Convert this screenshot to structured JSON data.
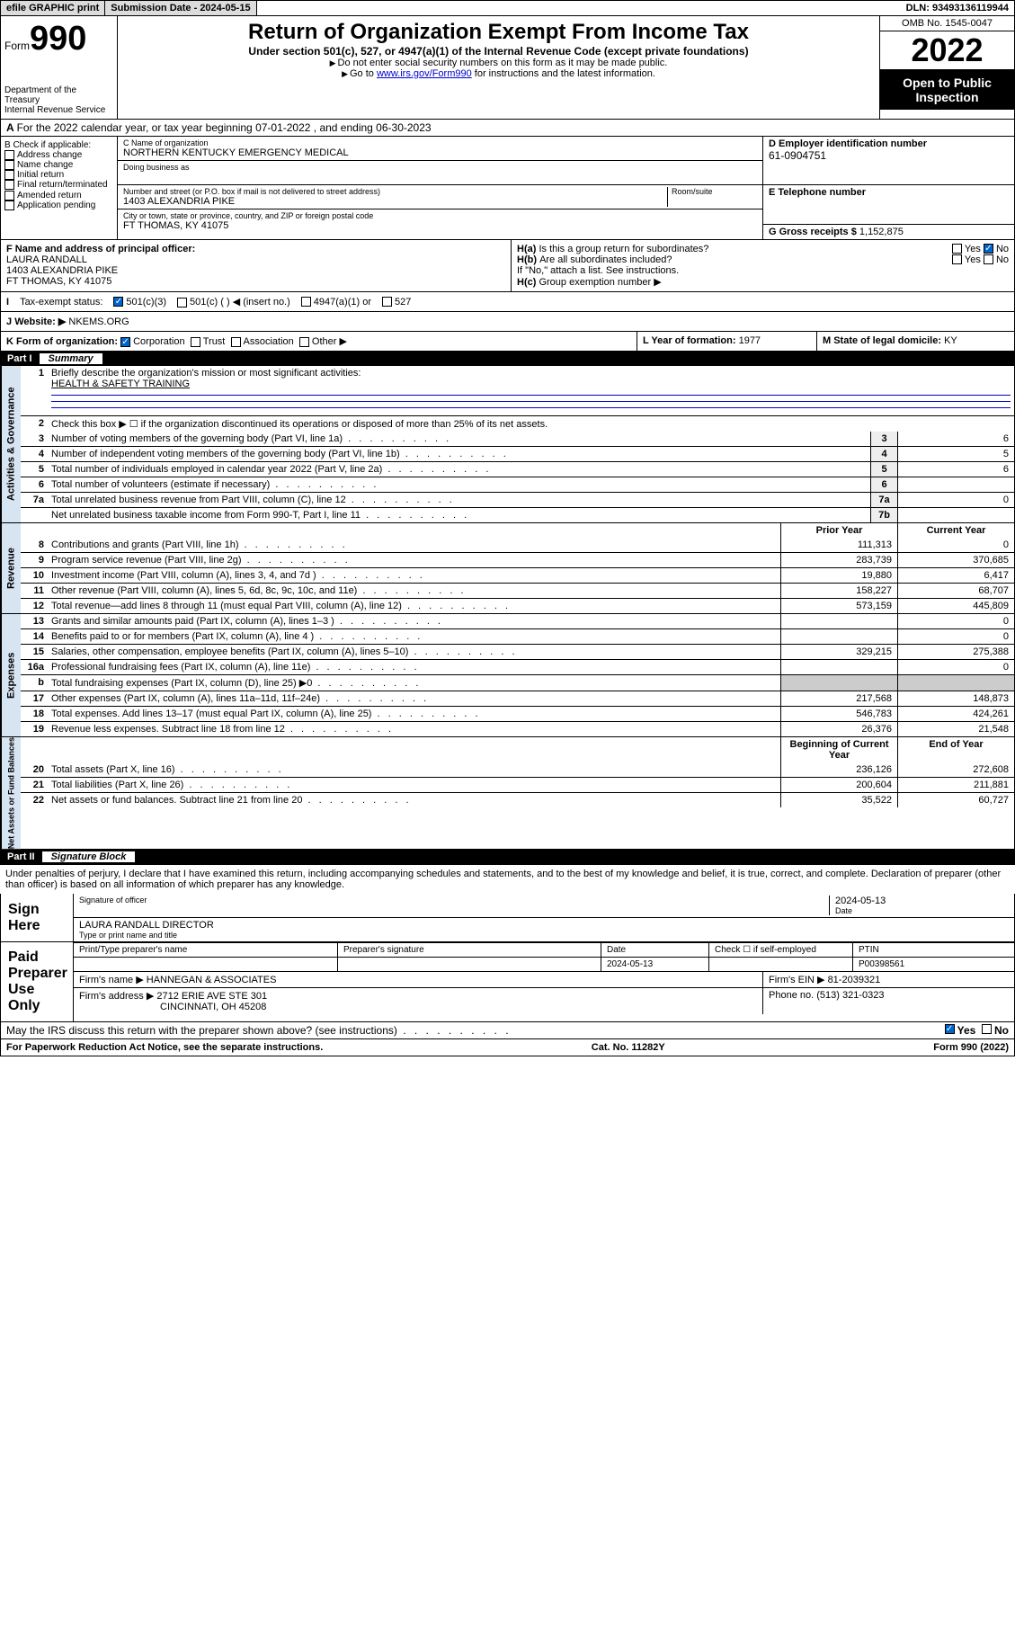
{
  "topbar": {
    "efile": "efile GRAPHIC print",
    "sub_label": "Submission Date - 2024-05-15",
    "dln": "DLN: 93493136119944"
  },
  "header": {
    "form_prefix": "Form",
    "form_num": "990",
    "dept": "Department of the Treasury",
    "irs": "Internal Revenue Service",
    "title": "Return of Organization Exempt From Income Tax",
    "subtitle": "Under section 501(c), 527, or 4947(a)(1) of the Internal Revenue Code (except private foundations)",
    "note1": "Do not enter social security numbers on this form as it may be made public.",
    "note2_pre": "Go to ",
    "note2_link": "www.irs.gov/Form990",
    "note2_post": " for instructions and the latest information.",
    "omb": "OMB No. 1545-0047",
    "year": "2022",
    "inspect": "Open to Public Inspection"
  },
  "rowA": "For the 2022 calendar year, or tax year beginning 07-01-2022   , and ending 06-30-2023",
  "B": {
    "label": "B Check if applicable:",
    "items": [
      "Address change",
      "Name change",
      "Initial return",
      "Final return/terminated",
      "Amended return",
      "Application pending"
    ]
  },
  "C": {
    "name_lbl": "C Name of organization",
    "name": "NORTHERN KENTUCKY EMERGENCY MEDICAL",
    "dba_lbl": "Doing business as",
    "street_lbl": "Number and street (or P.O. box if mail is not delivered to street address)",
    "room_lbl": "Room/suite",
    "street": "1403 ALEXANDRIA PIKE",
    "city_lbl": "City or town, state or province, country, and ZIP or foreign postal code",
    "city": "FT THOMAS, KY  41075"
  },
  "D": {
    "label": "D Employer identification number",
    "val": "61-0904751"
  },
  "E": {
    "label": "E Telephone number",
    "val": ""
  },
  "G": {
    "label": "G Gross receipts $",
    "val": "1,152,875"
  },
  "F": {
    "label": "F  Name and address of principal officer:",
    "name": "LAURA RANDALL",
    "street": "1403 ALEXANDRIA PIKE",
    "city": "FT THOMAS, KY  41075"
  },
  "H": {
    "a": "Is this a group return for subordinates?",
    "b": "Are all subordinates included?",
    "b_note": "If \"No,\" attach a list. See instructions.",
    "c": "Group exemption number ▶",
    "yes": "Yes",
    "no": "No"
  },
  "I": {
    "label": "Tax-exempt status:",
    "opts": [
      "501(c)(3)",
      "501(c) (   ) ◀ (insert no.)",
      "4947(a)(1) or",
      "527"
    ]
  },
  "J": {
    "label": "Website: ▶",
    "val": "NKEMS.ORG"
  },
  "K": {
    "label": "K Form of organization:",
    "opts": [
      "Corporation",
      "Trust",
      "Association",
      "Other ▶"
    ]
  },
  "L": {
    "label": "L Year of formation:",
    "val": "1977"
  },
  "M": {
    "label": "M State of legal domicile:",
    "val": "KY"
  },
  "part1": {
    "num": "Part I",
    "title": "Summary"
  },
  "summary": {
    "mission_lbl": "Briefly describe the organization's mission or most significant activities:",
    "mission": "HEALTH & SAFETY TRAINING",
    "line2": "Check this box ▶ ☐  if the organization discontinued its operations or disposed of more than 25% of its net assets.",
    "governance": [
      {
        "n": "3",
        "t": "Number of voting members of the governing body (Part VI, line 1a)",
        "b": "3",
        "v": "6"
      },
      {
        "n": "4",
        "t": "Number of independent voting members of the governing body (Part VI, line 1b)",
        "b": "4",
        "v": "5"
      },
      {
        "n": "5",
        "t": "Total number of individuals employed in calendar year 2022 (Part V, line 2a)",
        "b": "5",
        "v": "6"
      },
      {
        "n": "6",
        "t": "Total number of volunteers (estimate if necessary)",
        "b": "6",
        "v": ""
      },
      {
        "n": "7a",
        "t": "Total unrelated business revenue from Part VIII, column (C), line 12",
        "b": "7a",
        "v": "0"
      },
      {
        "n": "",
        "t": "Net unrelated business taxable income from Form 990-T, Part I, line 11",
        "b": "7b",
        "v": ""
      }
    ],
    "col_hdr": {
      "prior": "Prior Year",
      "current": "Current Year"
    },
    "revenue": [
      {
        "n": "8",
        "t": "Contributions and grants (Part VIII, line 1h)",
        "p": "111,313",
        "c": "0"
      },
      {
        "n": "9",
        "t": "Program service revenue (Part VIII, line 2g)",
        "p": "283,739",
        "c": "370,685"
      },
      {
        "n": "10",
        "t": "Investment income (Part VIII, column (A), lines 3, 4, and 7d )",
        "p": "19,880",
        "c": "6,417"
      },
      {
        "n": "11",
        "t": "Other revenue (Part VIII, column (A), lines 5, 6d, 8c, 9c, 10c, and 11e)",
        "p": "158,227",
        "c": "68,707"
      },
      {
        "n": "12",
        "t": "Total revenue—add lines 8 through 11 (must equal Part VIII, column (A), line 12)",
        "p": "573,159",
        "c": "445,809"
      }
    ],
    "expenses": [
      {
        "n": "13",
        "t": "Grants and similar amounts paid (Part IX, column (A), lines 1–3 )",
        "p": "",
        "c": "0"
      },
      {
        "n": "14",
        "t": "Benefits paid to or for members (Part IX, column (A), line 4 )",
        "p": "",
        "c": "0"
      },
      {
        "n": "15",
        "t": "Salaries, other compensation, employee benefits (Part IX, column (A), lines 5–10)",
        "p": "329,215",
        "c": "275,388"
      },
      {
        "n": "16a",
        "t": "Professional fundraising fees (Part IX, column (A), line 11e)",
        "p": "",
        "c": "0"
      },
      {
        "n": "b",
        "t": "Total fundraising expenses (Part IX, column (D), line 25) ▶0",
        "p": "",
        "c": "",
        "shade": true
      },
      {
        "n": "17",
        "t": "Other expenses (Part IX, column (A), lines 11a–11d, 11f–24e)",
        "p": "217,568",
        "c": "148,873"
      },
      {
        "n": "18",
        "t": "Total expenses. Add lines 13–17 (must equal Part IX, column (A), line 25)",
        "p": "546,783",
        "c": "424,261"
      },
      {
        "n": "19",
        "t": "Revenue less expenses. Subtract line 18 from line 12",
        "p": "26,376",
        "c": "21,548"
      }
    ],
    "netassets_hdr": {
      "prior": "Beginning of Current Year",
      "current": "End of Year"
    },
    "netassets": [
      {
        "n": "20",
        "t": "Total assets (Part X, line 16)",
        "p": "236,126",
        "c": "272,608"
      },
      {
        "n": "21",
        "t": "Total liabilities (Part X, line 26)",
        "p": "200,604",
        "c": "211,881"
      },
      {
        "n": "22",
        "t": "Net assets or fund balances. Subtract line 21 from line 20",
        "p": "35,522",
        "c": "60,727"
      }
    ]
  },
  "part2": {
    "num": "Part II",
    "title": "Signature Block"
  },
  "declaration": "Under penalties of perjury, I declare that I have examined this return, including accompanying schedules and statements, and to the best of my knowledge and belief, it is true, correct, and complete. Declaration of preparer (other than officer) is based on all information of which preparer has any knowledge.",
  "sign": {
    "here": "Sign Here",
    "sig_lbl": "Signature of officer",
    "date_lbl": "Date",
    "date": "2024-05-13",
    "name": "LAURA RANDALL  DIRECTOR",
    "name_lbl": "Type or print name and title"
  },
  "paid": {
    "title": "Paid Preparer Use Only",
    "h": [
      "Print/Type preparer's name",
      "Preparer's signature",
      "Date",
      "Check ☐ if self-employed",
      "PTIN"
    ],
    "r1": [
      "",
      "",
      "2024-05-13",
      "",
      "P00398561"
    ],
    "firm_name_lbl": "Firm's name   ▶",
    "firm_name": "HANNEGAN & ASSOCIATES",
    "firm_ein_lbl": "Firm's EIN ▶",
    "firm_ein": "81-2039321",
    "firm_addr_lbl": "Firm's address ▶",
    "firm_addr1": "2712 ERIE AVE STE 301",
    "firm_addr2": "CINCINNATI, OH  45208",
    "phone_lbl": "Phone no.",
    "phone": "(513) 321-0323"
  },
  "discuss": "May the IRS discuss this return with the preparer shown above? (see instructions)",
  "footer": {
    "l": "For Paperwork Reduction Act Notice, see the separate instructions.",
    "m": "Cat. No. 11282Y",
    "r": "Form 990 (2022)"
  },
  "colors": {
    "link": "#0000cc",
    "vtab_bg": "#d7e4f2",
    "check": "#0066cc",
    "btn_bg": "#dcdcdc"
  }
}
